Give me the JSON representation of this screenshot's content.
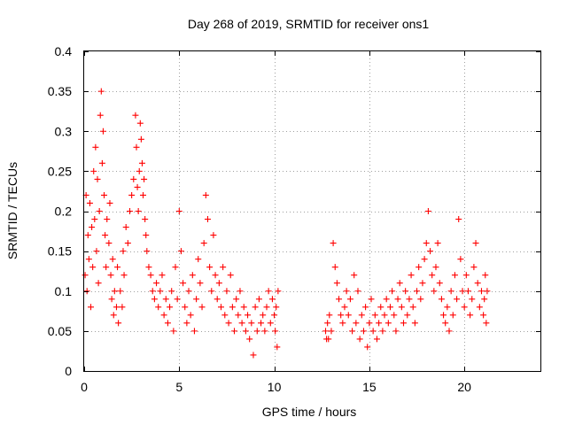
{
  "chart_data": {
    "type": "scatter",
    "title": "Day 268 of 2019, SRMTID for receiver ons1",
    "xlabel": "GPS time / hours",
    "ylabel": "SRMTID / TECUs",
    "xlim": [
      0,
      24
    ],
    "ylim": [
      0,
      0.4
    ],
    "x_ticks": [
      0,
      5,
      10,
      15,
      20
    ],
    "y_ticks": [
      0,
      0.05,
      0.1,
      0.15,
      0.2,
      0.25,
      0.3,
      0.35,
      0.4
    ],
    "x_tick_labels": [
      "0",
      "5",
      "10",
      "15",
      "20"
    ],
    "y_tick_labels": [
      "0",
      "0.05",
      "0.1",
      "0.15",
      "0.2",
      "0.25",
      "0.3",
      "0.35",
      "0.4"
    ],
    "grid": true,
    "marker": "+",
    "color": "#ff0000",
    "series": [
      {
        "name": "ons1",
        "points": [
          [
            0.05,
            0.12
          ],
          [
            0.1,
            0.22
          ],
          [
            0.15,
            0.1
          ],
          [
            0.2,
            0.17
          ],
          [
            0.25,
            0.14
          ],
          [
            0.3,
            0.21
          ],
          [
            0.35,
            0.08
          ],
          [
            0.4,
            0.18
          ],
          [
            0.45,
            0.13
          ],
          [
            0.5,
            0.25
          ],
          [
            0.55,
            0.19
          ],
          [
            0.6,
            0.28
          ],
          [
            0.65,
            0.15
          ],
          [
            0.7,
            0.24
          ],
          [
            0.75,
            0.11
          ],
          [
            0.8,
            0.2
          ],
          [
            0.85,
            0.32
          ],
          [
            0.9,
            0.35
          ],
          [
            0.95,
            0.26
          ],
          [
            1.0,
            0.3
          ],
          [
            1.05,
            0.22
          ],
          [
            1.1,
            0.17
          ],
          [
            1.15,
            0.13
          ],
          [
            1.2,
            0.19
          ],
          [
            1.3,
            0.16
          ],
          [
            1.35,
            0.21
          ],
          [
            1.4,
            0.12
          ],
          [
            1.45,
            0.09
          ],
          [
            1.5,
            0.14
          ],
          [
            1.55,
            0.07
          ],
          [
            1.6,
            0.1
          ],
          [
            1.7,
            0.08
          ],
          [
            1.75,
            0.13
          ],
          [
            1.8,
            0.06
          ],
          [
            1.9,
            0.1
          ],
          [
            2.0,
            0.08
          ],
          [
            2.05,
            0.15
          ],
          [
            2.1,
            0.12
          ],
          [
            2.2,
            0.18
          ],
          [
            2.3,
            0.16
          ],
          [
            2.4,
            0.2
          ],
          [
            2.5,
            0.22
          ],
          [
            2.6,
            0.24
          ],
          [
            2.7,
            0.32
          ],
          [
            2.75,
            0.28
          ],
          [
            2.8,
            0.23
          ],
          [
            2.85,
            0.2
          ],
          [
            2.9,
            0.25
          ],
          [
            2.95,
            0.31
          ],
          [
            3.0,
            0.29
          ],
          [
            3.05,
            0.26
          ],
          [
            3.1,
            0.22
          ],
          [
            3.15,
            0.24
          ],
          [
            3.2,
            0.19
          ],
          [
            3.25,
            0.17
          ],
          [
            3.3,
            0.15
          ],
          [
            3.4,
            0.13
          ],
          [
            3.5,
            0.12
          ],
          [
            3.6,
            0.1
          ],
          [
            3.7,
            0.09
          ],
          [
            3.8,
            0.11
          ],
          [
            3.9,
            0.08
          ],
          [
            4.0,
            0.1
          ],
          [
            4.1,
            0.12
          ],
          [
            4.2,
            0.07
          ],
          [
            4.3,
            0.09
          ],
          [
            4.4,
            0.06
          ],
          [
            4.5,
            0.08
          ],
          [
            4.6,
            0.1
          ],
          [
            4.7,
            0.05
          ],
          [
            4.8,
            0.13
          ],
          [
            4.9,
            0.09
          ],
          [
            5.0,
            0.2
          ],
          [
            5.1,
            0.15
          ],
          [
            5.2,
            0.11
          ],
          [
            5.3,
            0.08
          ],
          [
            5.4,
            0.06
          ],
          [
            5.5,
            0.1
          ],
          [
            5.6,
            0.07
          ],
          [
            5.7,
            0.12
          ],
          [
            5.8,
            0.05
          ],
          [
            5.9,
            0.09
          ],
          [
            6.0,
            0.14
          ],
          [
            6.1,
            0.11
          ],
          [
            6.2,
            0.08
          ],
          [
            6.3,
            0.16
          ],
          [
            6.4,
            0.22
          ],
          [
            6.5,
            0.19
          ],
          [
            6.6,
            0.13
          ],
          [
            6.7,
            0.1
          ],
          [
            6.8,
            0.17
          ],
          [
            6.9,
            0.12
          ],
          [
            7.0,
            0.09
          ],
          [
            7.1,
            0.11
          ],
          [
            7.2,
            0.08
          ],
          [
            7.3,
            0.13
          ],
          [
            7.4,
            0.07
          ],
          [
            7.5,
            0.1
          ],
          [
            7.6,
            0.06
          ],
          [
            7.7,
            0.12
          ],
          [
            7.8,
            0.08
          ],
          [
            7.9,
            0.05
          ],
          [
            8.0,
            0.09
          ],
          [
            8.1,
            0.07
          ],
          [
            8.2,
            0.1
          ],
          [
            8.3,
            0.06
          ],
          [
            8.4,
            0.08
          ],
          [
            8.5,
            0.05
          ],
          [
            8.6,
            0.07
          ],
          [
            8.7,
            0.04
          ],
          [
            8.8,
            0.06
          ],
          [
            8.9,
            0.02
          ],
          [
            9.0,
            0.08
          ],
          [
            9.1,
            0.05
          ],
          [
            9.2,
            0.09
          ],
          [
            9.3,
            0.06
          ],
          [
            9.4,
            0.07
          ],
          [
            9.5,
            0.05
          ],
          [
            9.6,
            0.08
          ],
          [
            9.7,
            0.1
          ],
          [
            9.8,
            0.06
          ],
          [
            9.9,
            0.09
          ],
          [
            10.0,
            0.07
          ],
          [
            10.05,
            0.05
          ],
          [
            10.1,
            0.08
          ],
          [
            10.15,
            0.03
          ],
          [
            10.2,
            0.1
          ],
          [
            12.7,
            0.05
          ],
          [
            12.75,
            0.04
          ],
          [
            12.8,
            0.06
          ],
          [
            12.85,
            0.04
          ],
          [
            12.9,
            0.07
          ],
          [
            13.0,
            0.05
          ],
          [
            13.1,
            0.16
          ],
          [
            13.2,
            0.13
          ],
          [
            13.3,
            0.11
          ],
          [
            13.4,
            0.09
          ],
          [
            13.5,
            0.07
          ],
          [
            13.6,
            0.06
          ],
          [
            13.7,
            0.08
          ],
          [
            13.8,
            0.1
          ],
          [
            13.9,
            0.07
          ],
          [
            14.0,
            0.09
          ],
          [
            14.1,
            0.05
          ],
          [
            14.2,
            0.12
          ],
          [
            14.3,
            0.06
          ],
          [
            14.4,
            0.1
          ],
          [
            14.5,
            0.04
          ],
          [
            14.6,
            0.07
          ],
          [
            14.7,
            0.05
          ],
          [
            14.8,
            0.08
          ],
          [
            14.9,
            0.03
          ],
          [
            15.0,
            0.06
          ],
          [
            15.1,
            0.09
          ],
          [
            15.2,
            0.05
          ],
          [
            15.3,
            0.07
          ],
          [
            15.4,
            0.04
          ],
          [
            15.5,
            0.06
          ],
          [
            15.6,
            0.08
          ],
          [
            15.7,
            0.05
          ],
          [
            15.8,
            0.07
          ],
          [
            15.9,
            0.09
          ],
          [
            16.0,
            0.06
          ],
          [
            16.1,
            0.08
          ],
          [
            16.2,
            0.1
          ],
          [
            16.3,
            0.07
          ],
          [
            16.4,
            0.05
          ],
          [
            16.5,
            0.09
          ],
          [
            16.6,
            0.11
          ],
          [
            16.7,
            0.08
          ],
          [
            16.8,
            0.06
          ],
          [
            16.9,
            0.1
          ],
          [
            17.0,
            0.07
          ],
          [
            17.1,
            0.09
          ],
          [
            17.2,
            0.12
          ],
          [
            17.3,
            0.08
          ],
          [
            17.4,
            0.06
          ],
          [
            17.5,
            0.1
          ],
          [
            17.6,
            0.13
          ],
          [
            17.7,
            0.09
          ],
          [
            17.8,
            0.11
          ],
          [
            17.9,
            0.14
          ],
          [
            18.0,
            0.16
          ],
          [
            18.1,
            0.2
          ],
          [
            18.2,
            0.15
          ],
          [
            18.3,
            0.12
          ],
          [
            18.4,
            0.1
          ],
          [
            18.5,
            0.13
          ],
          [
            18.6,
            0.16
          ],
          [
            18.7,
            0.11
          ],
          [
            18.8,
            0.09
          ],
          [
            18.9,
            0.07
          ],
          [
            19.0,
            0.06
          ],
          [
            19.1,
            0.08
          ],
          [
            19.2,
            0.05
          ],
          [
            19.3,
            0.1
          ],
          [
            19.4,
            0.07
          ],
          [
            19.5,
            0.12
          ],
          [
            19.6,
            0.09
          ],
          [
            19.7,
            0.19
          ],
          [
            19.8,
            0.14
          ],
          [
            19.9,
            0.1
          ],
          [
            20.0,
            0.08
          ],
          [
            20.1,
            0.12
          ],
          [
            20.2,
            0.1
          ],
          [
            20.3,
            0.07
          ],
          [
            20.4,
            0.09
          ],
          [
            20.5,
            0.13
          ],
          [
            20.6,
            0.16
          ],
          [
            20.7,
            0.11
          ],
          [
            20.8,
            0.08
          ],
          [
            20.9,
            0.1
          ],
          [
            21.0,
            0.07
          ],
          [
            21.05,
            0.09
          ],
          [
            21.1,
            0.12
          ],
          [
            21.15,
            0.06
          ],
          [
            21.2,
            0.1
          ]
        ]
      }
    ]
  }
}
